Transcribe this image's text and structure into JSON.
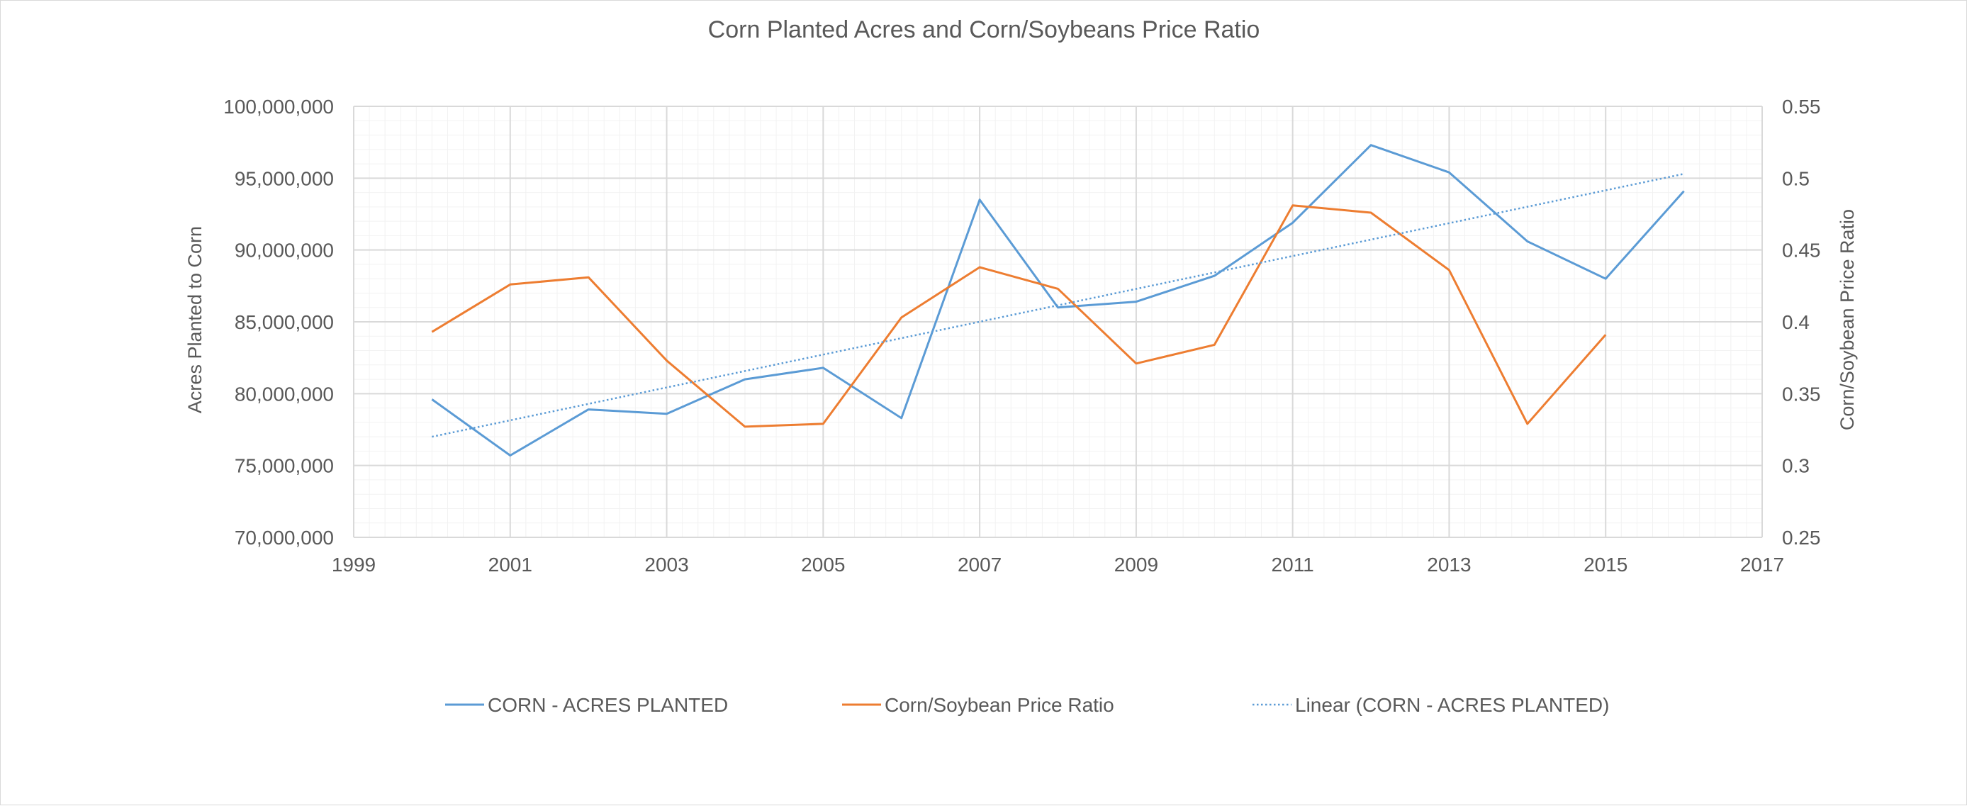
{
  "chart_data": {
    "type": "line",
    "title": "Corn Planted Acres and Corn/Soybeans Price Ratio",
    "xlabel": "",
    "ylabel": "Acres Planted to Corn",
    "y2label": "Corn/Soybean Price Ratio",
    "xlim": [
      1999,
      2017
    ],
    "x_ticks": [
      "1999",
      "2001",
      "2003",
      "2005",
      "2007",
      "2009",
      "2011",
      "2013",
      "2015",
      "2017"
    ],
    "ylim": [
      70000000,
      100000000
    ],
    "y_ticks": [
      "70,000,000",
      "75,000,000",
      "80,000,000",
      "85,000,000",
      "90,000,000",
      "95,000,000",
      "100,000,000"
    ],
    "y2lim": [
      0.25,
      0.55
    ],
    "y2_ticks": [
      "0.25",
      "0.3",
      "0.35",
      "0.4",
      "0.45",
      "0.5",
      "0.55"
    ],
    "grid": true,
    "legend_position": "bottom",
    "series": [
      {
        "name": "CORN - ACRES PLANTED",
        "axis": "left",
        "color": "#5B9BD5",
        "style": "solid",
        "x": [
          2000,
          2001,
          2002,
          2003,
          2004,
          2005,
          2006,
          2007,
          2008,
          2009,
          2010,
          2011,
          2012,
          2013,
          2014,
          2015,
          2016
        ],
        "values": [
          79600000,
          75700000,
          78900000,
          78600000,
          81000000,
          81800000,
          78300000,
          93500000,
          86000000,
          86400000,
          88200000,
          91900000,
          97300000,
          95400000,
          90600000,
          88000000,
          94100000
        ]
      },
      {
        "name": "Corn/Soybean Price Ratio",
        "axis": "right",
        "color": "#ED7D31",
        "style": "solid",
        "x": [
          2000,
          2001,
          2002,
          2003,
          2004,
          2005,
          2006,
          2007,
          2008,
          2009,
          2010,
          2011,
          2012,
          2013,
          2014,
          2015
        ],
        "values": [
          0.393,
          0.426,
          0.431,
          0.373,
          0.327,
          0.329,
          0.403,
          0.438,
          0.423,
          0.371,
          0.384,
          0.481,
          0.476,
          0.436,
          0.329,
          0.391
        ]
      },
      {
        "name": "Linear (CORN - ACRES PLANTED)",
        "axis": "left",
        "color": "#5B9BD5",
        "style": "dotted",
        "trendline_of": "CORN - ACRES PLANTED",
        "x": [
          2000,
          2016
        ],
        "values": [
          77000000,
          95300000
        ]
      }
    ]
  }
}
